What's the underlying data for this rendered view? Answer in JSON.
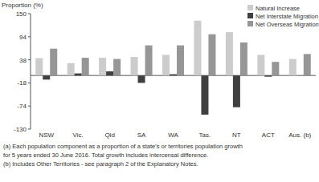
{
  "chart_data": {
    "type": "bar",
    "y_label": "Proportion (%)",
    "categories": [
      "NSW",
      "Vic.",
      "Qld",
      "SA",
      "WA",
      "Tas.",
      "NT",
      "ACT",
      "Aus. (b)"
    ],
    "series": [
      {
        "name": "Natural Increase",
        "color": "#cccccc",
        "values": [
          42,
          30,
          43,
          45,
          50,
          133,
          105,
          50,
          40
        ]
      },
      {
        "name": "Net Interstate Migration",
        "color": "#404040",
        "values": [
          -10,
          5,
          10,
          -18,
          3,
          -95,
          -77,
          -3,
          0
        ]
      },
      {
        "name": "Net Overseas Migration",
        "color": "#969696",
        "values": [
          65,
          43,
          40,
          73,
          73,
          100,
          80,
          33,
          52
        ]
      }
    ],
    "ylim": [
      -130,
      150
    ],
    "yticks": [
      -130,
      -74,
      -18,
      38,
      94,
      150
    ],
    "grid": false,
    "legend": "top-right",
    "annotations": [
      "(a) Each population component as a proportion of a state's or territories population growth",
      "for 5 years ended 30 June 2016. Total growth includes intercensal difference.",
      "(b) Includes Other Territories - see paragraph 2 of the Explanatory Notes."
    ]
  }
}
